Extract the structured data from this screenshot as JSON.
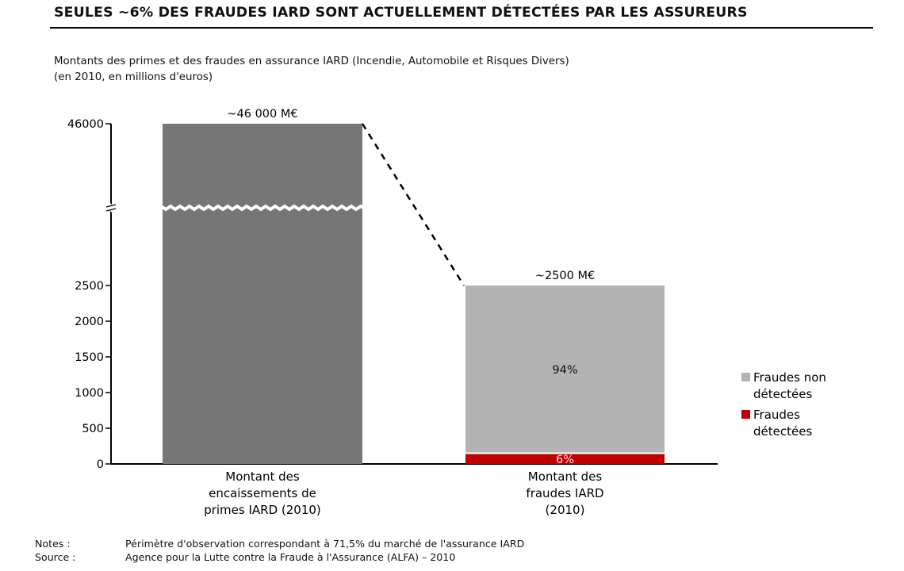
{
  "title": "SEULES ~6% DES FRAUDES IARD SONT ACTUELLEMENT DÉTECTÉES PAR LES ASSUREURS",
  "subtitle_line1": "Montants des primes et des fraudes en assurance IARD (Incendie, Automobile et Risques Divers)",
  "subtitle_line2": "(en 2010, en millions d'euros)",
  "chart_data": {
    "type": "bar",
    "stacked": true,
    "axis_break": true,
    "yticks": [
      0,
      500,
      1000,
      1500,
      2000,
      2500,
      46000
    ],
    "ytick_labels": [
      "0",
      "500",
      "1000",
      "1500",
      "2000",
      "2500",
      "46000"
    ],
    "categories": [
      "Montant des encaissements de primes IARD (2010)",
      "Montant des fraudes IARD (2010)"
    ],
    "category_lines": [
      [
        "Montant des",
        "encaissements de",
        "primes IARD (2010)"
      ],
      [
        "Montant des",
        "fraudes IARD",
        "(2010)"
      ]
    ],
    "bars": [
      {
        "total": 46000,
        "total_label": "~46 000 M€",
        "segments": [
          {
            "value": 46000,
            "color": "#767676",
            "label": ""
          }
        ]
      },
      {
        "total": 2500,
        "total_label": "~2500 M€",
        "segments": [
          {
            "series": "Fraudes détectées",
            "value": 150,
            "color": "#c00000",
            "label": "6%"
          },
          {
            "series": "Fraudes non détectées",
            "value": 2350,
            "color": "#b3b3b3",
            "label": "94%"
          }
        ]
      }
    ],
    "legend": {
      "placement": "right",
      "items": [
        {
          "lines": [
            "Fraudes non",
            "détectées"
          ],
          "color": "#b3b3b3"
        },
        {
          "lines": [
            "Fraudes",
            "détectées"
          ],
          "color": "#c00000"
        }
      ]
    },
    "connector": "dashed"
  },
  "notes_label": "Notes :",
  "notes_text": "Périmètre d'observation correspondant à 71,5% du marché de l'assurance IARD",
  "source_label": "Source :",
  "source_text": "Agence pour la Lutte contre la Fraude à l'Assurance (ALFA) – 2010"
}
